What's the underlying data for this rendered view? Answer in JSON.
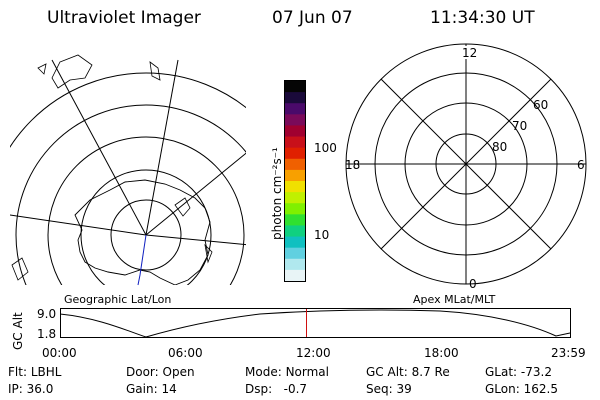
{
  "header": {
    "instrument": "Ultraviolet Imager",
    "date": "07 Jun 07",
    "time": "11:34:30 UT"
  },
  "left_map": {
    "label": "Geographic Lat/Lon"
  },
  "right_map": {
    "label": "Apex MLat/MLT",
    "mlt_labels": {
      "top": "12",
      "left": "18",
      "right": "6",
      "bottom": "0"
    },
    "mlat_labels": [
      "60",
      "70",
      "80"
    ]
  },
  "colorbar": {
    "unit_label": "photon cm⁻²s⁻¹",
    "tick_labels": [
      "100",
      "10"
    ],
    "colors": [
      "#050505",
      "#1a0a3a",
      "#4a0a6a",
      "#7a0a5a",
      "#a00030",
      "#c8101a",
      "#e02000",
      "#f06000",
      "#f8a000",
      "#f0e000",
      "#c0f000",
      "#80f000",
      "#30e030",
      "#10d080",
      "#10c0c0",
      "#60d0e0",
      "#b0e8ee",
      "#e8f4f6"
    ]
  },
  "timeline": {
    "ylabel": "GC Alt",
    "y_ticks": [
      "9.0",
      "1.8"
    ],
    "x_ticks": [
      "00:00",
      "06:00",
      "12:00",
      "18:00",
      "23:59"
    ],
    "current_time_fraction": 0.4823
  },
  "status": {
    "row1": [
      {
        "key": "Flt:",
        "value": "LBHL"
      },
      {
        "key": "Door:",
        "value": "Open"
      },
      {
        "key": "Mode:",
        "value": "Normal"
      },
      {
        "key": "GC Alt:",
        "value": "8.7 Re"
      },
      {
        "key": "GLat:",
        "value": "-73.2"
      }
    ],
    "row2": [
      {
        "key": "IP:",
        "value": "36.0"
      },
      {
        "key": "Gain:",
        "value": "14"
      },
      {
        "key": "Dsp:",
        "value": "-0.7"
      },
      {
        "key": "Seq:",
        "value": "39"
      },
      {
        "key": "GLon:",
        "value": "162.5"
      }
    ]
  }
}
